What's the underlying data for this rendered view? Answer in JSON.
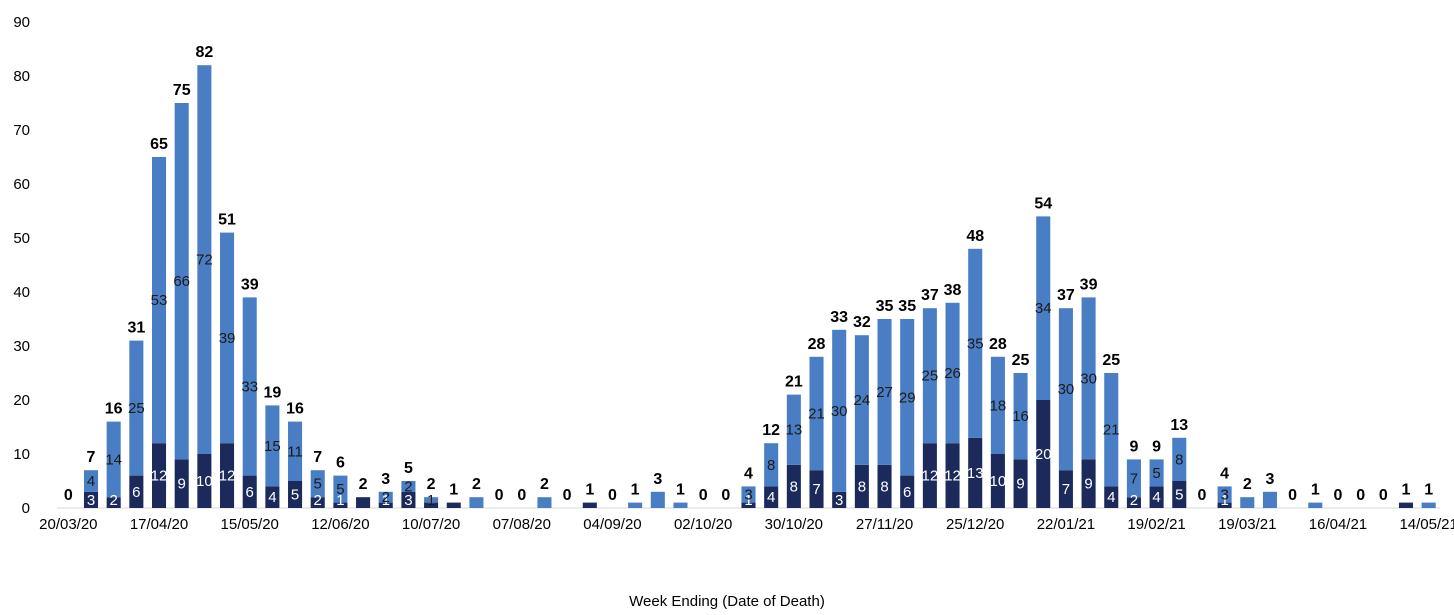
{
  "chart_data": {
    "type": "bar",
    "stacked": true,
    "title": "",
    "xlabel": "Week Ending (Date of Death)",
    "ylabel": "",
    "ylim": [
      0,
      90
    ],
    "yticks": [
      0,
      10,
      20,
      30,
      40,
      50,
      60,
      70,
      80,
      90
    ],
    "grid": false,
    "legend": "none",
    "colors": {
      "dark": "#1b2a5a",
      "light": "#4a7ec4",
      "axis": "#d9d9d9"
    },
    "x_tick_labels": [
      "20/03/20",
      "17/04/20",
      "15/05/20",
      "12/06/20",
      "10/07/20",
      "07/08/20",
      "04/09/20",
      "02/10/20",
      "30/10/20",
      "27/11/20",
      "25/12/20",
      "22/01/21",
      "19/02/21",
      "19/03/21",
      "16/04/21",
      "14/05/21"
    ],
    "x_tick_index": [
      0,
      4,
      8,
      12,
      16,
      20,
      24,
      28,
      32,
      36,
      40,
      44,
      48,
      52,
      56,
      60
    ],
    "categories": [
      "20/03/20",
      "27/03/20",
      "03/04/20",
      "10/04/20",
      "17/04/20",
      "24/04/20",
      "01/05/20",
      "08/05/20",
      "15/05/20",
      "22/05/20",
      "29/05/20",
      "05/06/20",
      "12/06/20",
      "19/06/20",
      "26/06/20",
      "03/07/20",
      "10/07/20",
      "17/07/20",
      "24/07/20",
      "31/07/20",
      "07/08/20",
      "14/08/20",
      "21/08/20",
      "28/08/20",
      "04/09/20",
      "11/09/20",
      "18/09/20",
      "25/09/20",
      "02/10/20",
      "09/10/20",
      "16/10/20",
      "23/10/20",
      "30/10/20",
      "06/11/20",
      "13/11/20",
      "20/11/20",
      "27/11/20",
      "04/12/20",
      "11/12/20",
      "18/12/20",
      "25/12/20",
      "01/01/21",
      "08/01/21",
      "15/01/21",
      "22/01/21",
      "29/01/21",
      "05/02/21",
      "12/02/21",
      "19/02/21",
      "26/02/21",
      "05/03/21",
      "12/03/21",
      "19/03/21",
      "26/03/21",
      "02/04/21",
      "09/04/21",
      "16/04/21",
      "23/04/21",
      "30/04/21",
      "07/05/21",
      "14/05/21"
    ],
    "totals": [
      0,
      7,
      16,
      31,
      65,
      75,
      82,
      51,
      39,
      19,
      16,
      7,
      6,
      2,
      3,
      5,
      2,
      1,
      2,
      0,
      0,
      2,
      0,
      1,
      0,
      1,
      3,
      1,
      0,
      0,
      4,
      12,
      21,
      28,
      33,
      32,
      35,
      35,
      37,
      38,
      48,
      28,
      25,
      54,
      37,
      39,
      25,
      9,
      9,
      13,
      0,
      4,
      2,
      3,
      0,
      1,
      0,
      0,
      0,
      1,
      1
    ],
    "series": [
      {
        "values": [
          0,
          3,
          2,
          6,
          12,
          9,
          10,
          12,
          6,
          4,
          5,
          2,
          1,
          2,
          1,
          3,
          1,
          1,
          0,
          0,
          0,
          0,
          0,
          1,
          0,
          0,
          0,
          0,
          0,
          0,
          1,
          4,
          8,
          7,
          3,
          8,
          8,
          6,
          12,
          12,
          13,
          10,
          9,
          20,
          7,
          9,
          4,
          2,
          4,
          5,
          0,
          1,
          0,
          0,
          0,
          0,
          0,
          0,
          0,
          1,
          0
        ]
      },
      {
        "values": [
          0,
          4,
          14,
          25,
          53,
          66,
          72,
          39,
          33,
          15,
          11,
          5,
          5,
          0,
          2,
          2,
          1,
          0,
          2,
          0,
          0,
          2,
          0,
          0,
          0,
          1,
          3,
          1,
          0,
          0,
          3,
          8,
          13,
          21,
          30,
          24,
          27,
          29,
          25,
          26,
          35,
          18,
          16,
          34,
          30,
          30,
          21,
          7,
          5,
          8,
          0,
          3,
          2,
          3,
          0,
          1,
          0,
          0,
          0,
          0,
          1
        ]
      }
    ]
  }
}
